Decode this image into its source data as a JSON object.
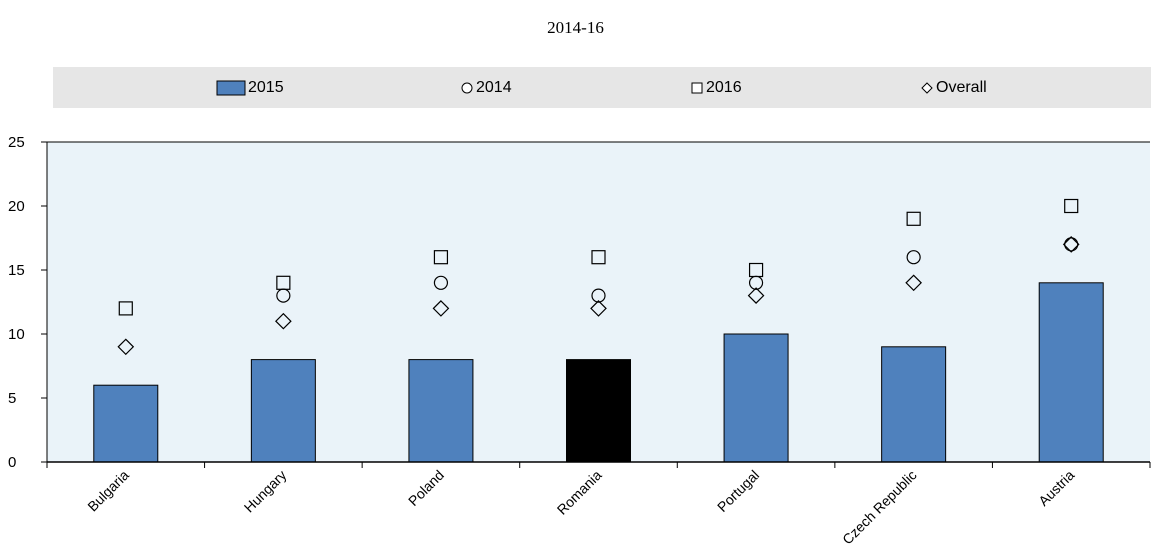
{
  "chart_data": {
    "type": "bar",
    "title": "2014-16",
    "categories": [
      "Bulgaria",
      "Hungary",
      "Poland",
      "Romania",
      "Portugal",
      "Czech Republic",
      "Austria"
    ],
    "series": [
      {
        "name": "2015",
        "kind": "bar",
        "values": [
          6,
          8,
          8,
          8,
          10,
          9,
          14
        ]
      },
      {
        "name": "2014",
        "kind": "marker",
        "marker": "circle",
        "values": [
          null,
          13,
          14,
          13,
          14,
          16,
          17
        ]
      },
      {
        "name": "2016",
        "kind": "marker",
        "marker": "square",
        "values": [
          12,
          14,
          16,
          16,
          15,
          19,
          20
        ]
      },
      {
        "name": "Overall",
        "kind": "marker",
        "marker": "diamond",
        "values": [
          9,
          11,
          12,
          12,
          13,
          14,
          17
        ]
      }
    ],
    "highlight_category": "Romania",
    "ylim": [
      0,
      25
    ],
    "yticks": [
      0,
      5,
      10,
      15,
      20,
      25
    ],
    "xlabel": "",
    "ylabel": "",
    "grid": false,
    "legend_position": "top",
    "colors": {
      "bar": "#4f81bd",
      "bar_highlight": "#000000",
      "plot_background": "#eaf3f9",
      "legend_background": "#e6e6e6"
    }
  }
}
